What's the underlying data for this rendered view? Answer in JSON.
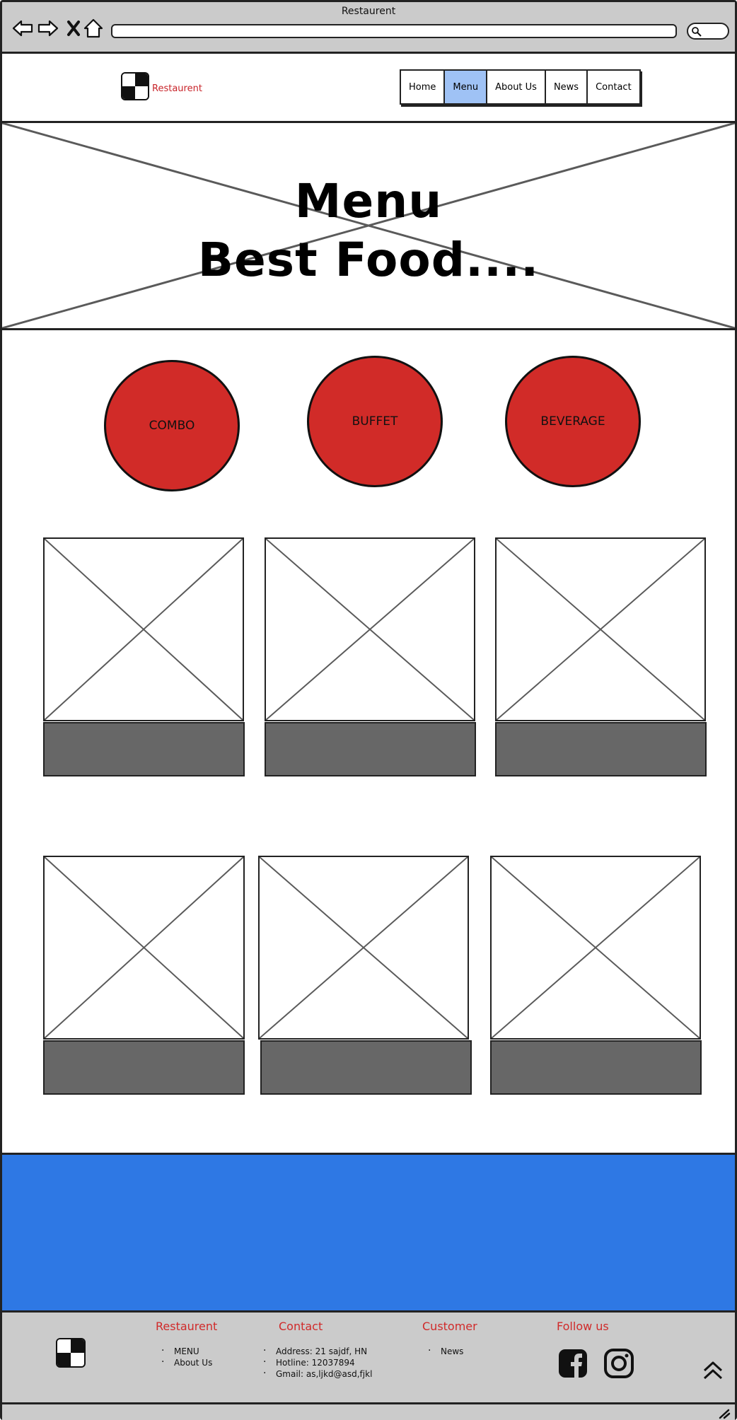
{
  "window": {
    "title": "Restaurent"
  },
  "header": {
    "logo_text": "Restaurent",
    "nav": [
      {
        "label": "Home",
        "active": false
      },
      {
        "label": "Menu",
        "active": true
      },
      {
        "label": "About Us",
        "active": false
      },
      {
        "label": "News",
        "active": false
      },
      {
        "label": "Contact",
        "active": false
      }
    ]
  },
  "hero": {
    "title": "Menu",
    "subtitle": "Best Food...."
  },
  "categories": [
    "COMBO",
    "BUFFET",
    "BEVERAGE"
  ],
  "footer": {
    "restaurant": {
      "heading": "Restaurent",
      "items": [
        "MENU",
        "About Us"
      ]
    },
    "contact": {
      "heading": "Contact",
      "items": [
        "Address: 21 sajdf, HN",
        "Hotline: 12037894",
        "Gmail: as,ljkd@asd,fjkl"
      ]
    },
    "customer": {
      "heading": "Customer",
      "items": [
        "News"
      ]
    },
    "follow": {
      "heading": "Follow us"
    }
  },
  "colors": {
    "accent_red": "#d12b28",
    "nav_active": "#9fc2f5",
    "band_blue": "#2e78e4",
    "caption_gray": "#676767"
  },
  "icons": [
    "back-arrow-icon",
    "forward-arrow-icon",
    "close-icon",
    "home-icon",
    "search-icon",
    "facebook-icon",
    "instagram-icon",
    "chevron-up-icon",
    "resize-grip-icon"
  ]
}
